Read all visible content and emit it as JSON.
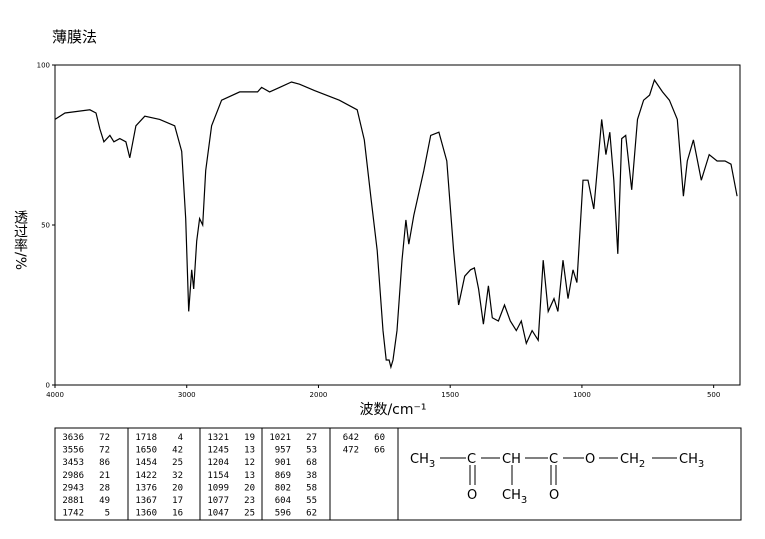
{
  "header": {
    "title": "薄膜法"
  },
  "chart_data": {
    "type": "line",
    "x_label": "波数/cm⁻¹",
    "y_label": "透过率/%",
    "x": [
      4000,
      3924,
      3735,
      3689,
      3659,
      3629,
      3583,
      3553,
      3508,
      3462,
      3432,
      3386,
      3318,
      3205,
      3091,
      3038,
      3008,
      2985,
      2962,
      2947,
      2924,
      2902,
      2879,
      2856,
      2811,
      2735,
      2598,
      2462,
      2432,
      2371,
      2295,
      2205,
      2144,
      2030,
      1921,
      1853,
      1826,
      1800,
      1777,
      1755,
      1743,
      1732,
      1725,
      1717,
      1702,
      1683,
      1668,
      1657,
      1638,
      1600,
      1574,
      1543,
      1513,
      1487,
      1468,
      1445,
      1423,
      1408,
      1392,
      1374,
      1355,
      1340,
      1317,
      1294,
      1272,
      1249,
      1230,
      1211,
      1189,
      1166,
      1147,
      1128,
      1106,
      1091,
      1072,
      1053,
      1034,
      1019,
      996,
      977,
      955,
      925,
      909,
      894,
      879,
      864,
      849,
      834,
      811,
      789,
      766,
      743,
      725,
      694,
      668,
      638,
      615,
      600,
      577,
      547,
      517,
      487,
      457,
      434,
      411
    ],
    "series": [
      {
        "color": "#000000",
        "values": [
          83,
          85,
          86,
          85,
          80,
          76,
          78,
          76,
          77,
          76,
          71,
          81,
          84,
          83,
          81,
          73,
          52,
          23,
          36,
          30,
          45,
          52,
          50,
          67,
          81,
          89,
          91.6,
          91.6,
          93,
          91.6,
          93,
          94.7,
          94,
          92,
          89,
          86,
          76.6,
          57.8,
          42,
          17,
          7.8,
          7.8,
          5.6,
          7.8,
          17,
          39,
          51.6,
          44,
          53,
          67,
          78,
          79,
          70,
          42,
          25,
          34,
          36,
          36.6,
          30,
          19,
          31,
          21,
          20,
          25,
          20,
          17,
          20,
          13,
          17,
          14,
          39,
          23,
          27,
          23,
          39,
          27,
          36,
          32,
          64,
          64,
          55,
          83,
          72,
          79,
          64,
          41,
          77,
          78,
          61,
          83,
          89,
          90.6,
          95.3,
          91.6,
          89,
          83,
          59,
          70,
          76.6,
          64,
          72,
          70,
          70,
          69,
          59
        ]
      }
    ],
    "xlim": [
      4000,
      400
    ],
    "ylim": [
      0,
      100
    ],
    "xticks": [
      4000,
      3000,
      2000,
      1500,
      1000,
      500
    ],
    "yticks": [
      0,
      50,
      100
    ]
  },
  "peak_table": {
    "columns": [
      [
        [
          3636,
          72
        ],
        [
          3556,
          72
        ],
        [
          3453,
          86
        ],
        [
          2986,
          21
        ],
        [
          2943,
          28
        ],
        [
          2881,
          49
        ],
        [
          1742,
          5
        ]
      ],
      [
        [
          1718,
          4
        ],
        [
          1650,
          42
        ],
        [
          1454,
          25
        ],
        [
          1422,
          32
        ],
        [
          1376,
          20
        ],
        [
          1367,
          17
        ],
        [
          1360,
          16
        ]
      ],
      [
        [
          1321,
          19
        ],
        [
          1245,
          13
        ],
        [
          1204,
          12
        ],
        [
          1154,
          13
        ],
        [
          1099,
          20
        ],
        [
          1077,
          23
        ],
        [
          1047,
          25
        ]
      ],
      [
        [
          1021,
          27
        ],
        [
          957,
          53
        ],
        [
          901,
          68
        ],
        [
          869,
          38
        ],
        [
          802,
          58
        ],
        [
          604,
          55
        ],
        [
          596,
          62
        ]
      ],
      [
        [
          642,
          60
        ],
        [
          472,
          66
        ]
      ]
    ]
  },
  "structure": {
    "atoms": [
      {
        "text": "CH",
        "sub": "3"
      },
      {
        "text": "C"
      },
      {
        "text": "CH"
      },
      {
        "text": "C"
      },
      {
        "text": "O"
      },
      {
        "text": "CH",
        "sub": "2"
      },
      {
        "text": "CH",
        "sub": "3"
      }
    ],
    "substituents": [
      {
        "text": "O"
      },
      {
        "text": "CH",
        "sub": "3"
      },
      {
        "text": "O"
      }
    ]
  }
}
